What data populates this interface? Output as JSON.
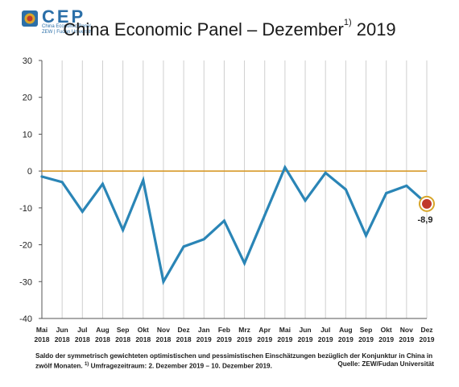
{
  "logo": {
    "name": "CEP",
    "line1": "China Economic Panel",
    "line2": "ZEW | Fudan University"
  },
  "header": {
    "title_main": "China Economic Panel – Dezember",
    "title_sup": "1)",
    "title_year": " 2019"
  },
  "footnote": {
    "text": "Saldo der symmetrisch gewichteten optimistischen und pessimistischen Einschätzungen bezüglich der Konjunktur in China in zwölf Monaten. ",
    "sup": "1)",
    "text2": " Umfragezeitraum: 2. Dezember 2019 – 10. Dezember 2019.",
    "source": "Quelle: ZEW/Fudan Universität"
  },
  "colors": {
    "line": "#2a85b6",
    "zero_line": "#d89a2a",
    "grid": "#cfcfcf",
    "marker_fill": "#c0392b"
  },
  "chart_data": {
    "type": "line",
    "categories": [
      [
        "Mai",
        "2018"
      ],
      [
        "Jun",
        "2018"
      ],
      [
        "Jul",
        "2018"
      ],
      [
        "Aug",
        "2018"
      ],
      [
        "Sep",
        "2018"
      ],
      [
        "Okt",
        "2018"
      ],
      [
        "Nov",
        "2018"
      ],
      [
        "Dez",
        "2018"
      ],
      [
        "Jan",
        "2019"
      ],
      [
        "Feb",
        "2019"
      ],
      [
        "Mrz",
        "2019"
      ],
      [
        "Apr",
        "2019"
      ],
      [
        "Mai",
        "2019"
      ],
      [
        "Jun",
        "2019"
      ],
      [
        "Jul",
        "2019"
      ],
      [
        "Aug",
        "2019"
      ],
      [
        "Sep",
        "2019"
      ],
      [
        "Okt",
        "2019"
      ],
      [
        "Nov",
        "2019"
      ],
      [
        "Dez",
        "2019"
      ]
    ],
    "values": [
      -1.5,
      -3.0,
      -11.0,
      -3.5,
      -16.0,
      -2.5,
      -30.0,
      -20.5,
      -18.5,
      -13.5,
      -25.0,
      -12.0,
      1.0,
      -8.0,
      -0.5,
      -5.0,
      -17.5,
      -6.0,
      -4.0,
      -8.9
    ],
    "ylim": [
      -40,
      30
    ],
    "yticks": [
      30,
      20,
      10,
      0,
      -10,
      -20,
      -30,
      -40
    ],
    "grid": "vertical",
    "reference_line": 0,
    "last_label": "-8,9"
  }
}
